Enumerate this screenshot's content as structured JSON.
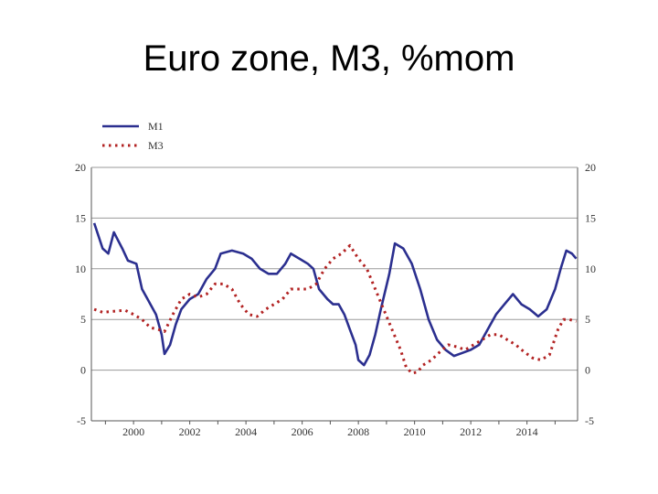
{
  "slide": {
    "title": "Euro zone, M3, %mom"
  },
  "chart_data": {
    "type": "line",
    "title": "",
    "xlabel": "",
    "ylabel": "",
    "xlim": [
      1998.5,
      2015.8
    ],
    "ylim": [
      -5,
      20
    ],
    "x_ticks": [
      "2000",
      "2002",
      "2004",
      "2006",
      "2008",
      "2010",
      "2012",
      "2014"
    ],
    "y_ticks": [
      "20",
      "15",
      "10",
      "5",
      "0",
      "-5"
    ],
    "grid": "horizontal",
    "dual_y_axis_labels": true,
    "legend": "top-left",
    "series": [
      {
        "name": "M1",
        "color": "#2b2f8f",
        "style": "solid",
        "points": [
          [
            1998.6,
            14.5
          ],
          [
            1998.9,
            12
          ],
          [
            1999.1,
            11.5
          ],
          [
            1999.3,
            13.6
          ],
          [
            1999.6,
            12
          ],
          [
            1999.8,
            10.8
          ],
          [
            2000.1,
            10.5
          ],
          [
            2000.3,
            8
          ],
          [
            2000.5,
            7
          ],
          [
            2000.8,
            5.5
          ],
          [
            2001.0,
            3.5
          ],
          [
            2001.1,
            1.6
          ],
          [
            2001.3,
            2.5
          ],
          [
            2001.5,
            4.5
          ],
          [
            2001.7,
            6
          ],
          [
            2002.0,
            7
          ],
          [
            2002.3,
            7.5
          ],
          [
            2002.6,
            9
          ],
          [
            2002.9,
            10
          ],
          [
            2003.1,
            11.5
          ],
          [
            2003.5,
            11.8
          ],
          [
            2003.9,
            11.5
          ],
          [
            2004.2,
            11
          ],
          [
            2004.5,
            10
          ],
          [
            2004.8,
            9.5
          ],
          [
            2005.1,
            9.5
          ],
          [
            2005.4,
            10.5
          ],
          [
            2005.6,
            11.5
          ],
          [
            2005.9,
            11
          ],
          [
            2006.2,
            10.5
          ],
          [
            2006.4,
            10
          ],
          [
            2006.6,
            8
          ],
          [
            2006.9,
            7
          ],
          [
            2007.1,
            6.5
          ],
          [
            2007.3,
            6.5
          ],
          [
            2007.5,
            5.5
          ],
          [
            2007.7,
            4
          ],
          [
            2007.9,
            2.5
          ],
          [
            2008.0,
            1
          ],
          [
            2008.2,
            0.5
          ],
          [
            2008.4,
            1.5
          ],
          [
            2008.6,
            3.5
          ],
          [
            2008.8,
            6
          ],
          [
            2009.1,
            9.5
          ],
          [
            2009.3,
            12.5
          ],
          [
            2009.6,
            12
          ],
          [
            2009.9,
            10.5
          ],
          [
            2010.2,
            8
          ],
          [
            2010.5,
            5
          ],
          [
            2010.8,
            3
          ],
          [
            2011.1,
            2
          ],
          [
            2011.4,
            1.4
          ],
          [
            2011.7,
            1.7
          ],
          [
            2012.0,
            2
          ],
          [
            2012.3,
            2.5
          ],
          [
            2012.6,
            4
          ],
          [
            2012.9,
            5.5
          ],
          [
            2013.2,
            6.5
          ],
          [
            2013.5,
            7.5
          ],
          [
            2013.8,
            6.5
          ],
          [
            2014.1,
            6
          ],
          [
            2014.4,
            5.3
          ],
          [
            2014.7,
            6
          ],
          [
            2015.0,
            8
          ],
          [
            2015.2,
            10
          ],
          [
            2015.4,
            11.8
          ],
          [
            2015.6,
            11.5
          ],
          [
            2015.75,
            11
          ]
        ]
      },
      {
        "name": "M3",
        "color": "#b22222",
        "style": "dotted",
        "points": [
          [
            1998.6,
            6
          ],
          [
            1998.9,
            5.7
          ],
          [
            1999.3,
            5.8
          ],
          [
            1999.7,
            5.9
          ],
          [
            2000.0,
            5.5
          ],
          [
            2000.3,
            5
          ],
          [
            2000.6,
            4.2
          ],
          [
            2000.9,
            4
          ],
          [
            2001.1,
            3.8
          ],
          [
            2001.4,
            5.5
          ],
          [
            2001.7,
            7
          ],
          [
            2002.0,
            7.5
          ],
          [
            2002.3,
            7.2
          ],
          [
            2002.6,
            7.5
          ],
          [
            2002.9,
            8.5
          ],
          [
            2003.2,
            8.5
          ],
          [
            2003.5,
            8
          ],
          [
            2003.8,
            6.5
          ],
          [
            2004.1,
            5.5
          ],
          [
            2004.4,
            5.3
          ],
          [
            2004.7,
            6
          ],
          [
            2005.0,
            6.5
          ],
          [
            2005.3,
            7
          ],
          [
            2005.6,
            8
          ],
          [
            2005.9,
            8
          ],
          [
            2006.2,
            8
          ],
          [
            2006.5,
            8.5
          ],
          [
            2006.8,
            10
          ],
          [
            2007.1,
            11
          ],
          [
            2007.4,
            11.5
          ],
          [
            2007.7,
            12.3
          ],
          [
            2008.0,
            11
          ],
          [
            2008.3,
            10
          ],
          [
            2008.6,
            8
          ],
          [
            2008.9,
            6
          ],
          [
            2009.2,
            4
          ],
          [
            2009.5,
            2
          ],
          [
            2009.7,
            0.3
          ],
          [
            2009.9,
            -0.3
          ],
          [
            2010.1,
            -0.2
          ],
          [
            2010.3,
            0.5
          ],
          [
            2010.6,
            1
          ],
          [
            2010.9,
            1.8
          ],
          [
            2011.2,
            2.5
          ],
          [
            2011.5,
            2.3
          ],
          [
            2011.8,
            2
          ],
          [
            2012.1,
            2.5
          ],
          [
            2012.4,
            3
          ],
          [
            2012.7,
            3.5
          ],
          [
            2013.0,
            3.5
          ],
          [
            2013.3,
            3
          ],
          [
            2013.6,
            2.5
          ],
          [
            2013.9,
            1.8
          ],
          [
            2014.2,
            1.2
          ],
          [
            2014.5,
            1
          ],
          [
            2014.8,
            1.5
          ],
          [
            2015.1,
            4
          ],
          [
            2015.3,
            5
          ],
          [
            2015.5,
            5
          ],
          [
            2015.75,
            4.8
          ]
        ]
      }
    ]
  }
}
